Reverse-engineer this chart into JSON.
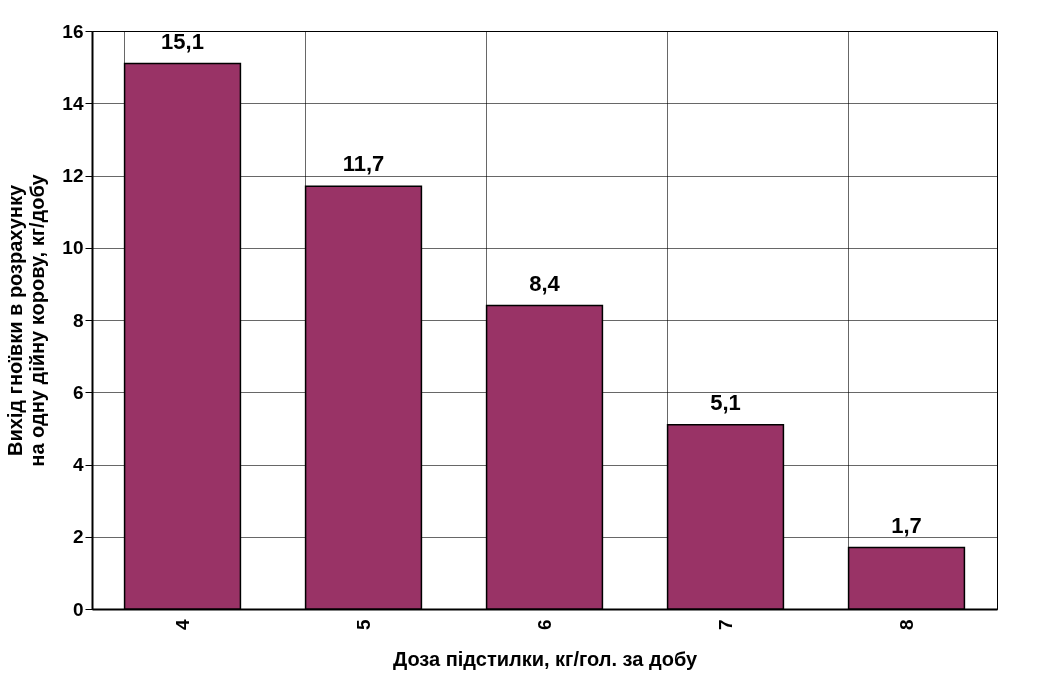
{
  "chart_data": {
    "type": "bar",
    "xlabel": "Доза підстилки, кг/гол. за добу",
    "ylabel": "Вихід гноївки в розрахунку на одну дійну корову, кг/добу",
    "categories": [
      "4",
      "5",
      "6",
      "7",
      "8"
    ],
    "values": [
      15.1,
      11.7,
      8.4,
      5.1,
      1.7
    ],
    "value_labels": [
      "15,1",
      "11,7",
      "8,4",
      "5,1",
      "1,7"
    ],
    "color": "#993366",
    "ylim": [
      0,
      16
    ],
    "yticks": [
      0,
      2,
      4,
      6,
      8,
      10,
      12,
      14,
      16
    ],
    "grid": true
  }
}
